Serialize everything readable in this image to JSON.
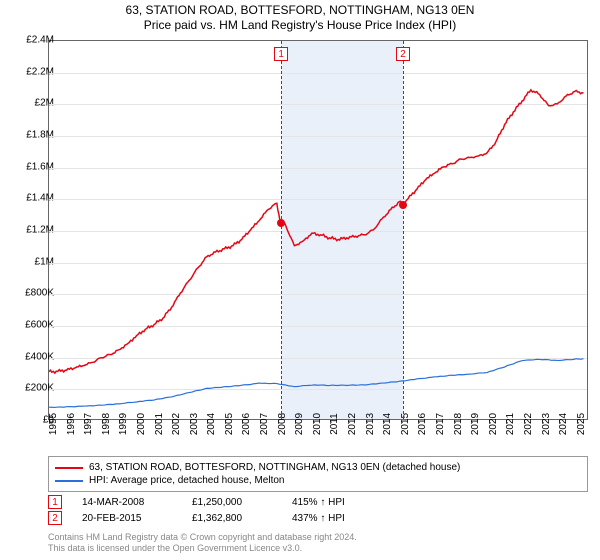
{
  "title_line1": "63, STATION ROAD, BOTTESFORD, NOTTINGHAM, NG13 0EN",
  "title_line2": "Price paid vs. HM Land Registry's House Price Index (HPI)",
  "chart": {
    "type": "line",
    "background_color": "#ffffff",
    "grid_color": "#e4e4e4",
    "shade_color": "#eaf0fa",
    "axis_color": "#666666",
    "x": {
      "min": 1995,
      "max": 2025.7,
      "ticks": [
        1995,
        1996,
        1997,
        1998,
        1999,
        2000,
        2001,
        2002,
        2003,
        2004,
        2005,
        2006,
        2007,
        2008,
        2009,
        2010,
        2011,
        2012,
        2013,
        2014,
        2015,
        2016,
        2017,
        2018,
        2019,
        2020,
        2021,
        2022,
        2023,
        2024,
        2025
      ]
    },
    "y": {
      "min": 0,
      "max": 2400000,
      "ticks": [
        0,
        200000,
        400000,
        600000,
        800000,
        1000000,
        1200000,
        1400000,
        1600000,
        1800000,
        2000000,
        2200000,
        2400000
      ],
      "tick_labels": [
        "£0",
        "£200K",
        "£400K",
        "£600K",
        "£800K",
        "£1M",
        "£1.2M",
        "£1.4M",
        "£1.6M",
        "£1.8M",
        "£2M",
        "£2.2M",
        "£2.4M"
      ]
    },
    "series": [
      {
        "id": "price_paid",
        "label": "63, STATION ROAD, BOTTESFORD, NOTTINGHAM, NG13 0EN (detached house)",
        "color": "#e30613",
        "width": 1.5,
        "data": [
          [
            1995.0,
            300000
          ],
          [
            1995.5,
            302000
          ],
          [
            1996.0,
            310000
          ],
          [
            1996.5,
            325000
          ],
          [
            1997.0,
            340000
          ],
          [
            1997.5,
            360000
          ],
          [
            1998.0,
            390000
          ],
          [
            1998.5,
            410000
          ],
          [
            1999.0,
            440000
          ],
          [
            1999.5,
            480000
          ],
          [
            2000.0,
            530000
          ],
          [
            2000.5,
            570000
          ],
          [
            2001.0,
            600000
          ],
          [
            2001.5,
            640000
          ],
          [
            2002.0,
            710000
          ],
          [
            2002.5,
            800000
          ],
          [
            2003.0,
            880000
          ],
          [
            2003.5,
            960000
          ],
          [
            2004.0,
            1030000
          ],
          [
            2004.5,
            1060000
          ],
          [
            2005.0,
            1080000
          ],
          [
            2005.5,
            1100000
          ],
          [
            2006.0,
            1140000
          ],
          [
            2006.5,
            1200000
          ],
          [
            2007.0,
            1260000
          ],
          [
            2007.5,
            1330000
          ],
          [
            2008.0,
            1370000
          ],
          [
            2008.2,
            1250000
          ],
          [
            2008.5,
            1230000
          ],
          [
            2009.0,
            1100000
          ],
          [
            2009.5,
            1130000
          ],
          [
            2010.0,
            1180000
          ],
          [
            2010.5,
            1170000
          ],
          [
            2011.0,
            1150000
          ],
          [
            2011.5,
            1140000
          ],
          [
            2012.0,
            1150000
          ],
          [
            2012.5,
            1160000
          ],
          [
            2013.0,
            1170000
          ],
          [
            2013.5,
            1200000
          ],
          [
            2014.0,
            1270000
          ],
          [
            2014.5,
            1330000
          ],
          [
            2015.0,
            1380000
          ],
          [
            2015.13,
            1362800
          ],
          [
            2015.5,
            1400000
          ],
          [
            2016.0,
            1460000
          ],
          [
            2016.5,
            1520000
          ],
          [
            2017.0,
            1560000
          ],
          [
            2017.5,
            1600000
          ],
          [
            2018.0,
            1620000
          ],
          [
            2018.5,
            1650000
          ],
          [
            2019.0,
            1660000
          ],
          [
            2019.5,
            1670000
          ],
          [
            2020.0,
            1690000
          ],
          [
            2020.5,
            1760000
          ],
          [
            2021.0,
            1870000
          ],
          [
            2021.5,
            1950000
          ],
          [
            2022.0,
            2020000
          ],
          [
            2022.5,
            2090000
          ],
          [
            2023.0,
            2060000
          ],
          [
            2023.5,
            1990000
          ],
          [
            2024.0,
            2000000
          ],
          [
            2024.5,
            2050000
          ],
          [
            2025.0,
            2080000
          ],
          [
            2025.5,
            2070000
          ]
        ]
      },
      {
        "id": "hpi",
        "label": "HPI: Average price, detached house, Melton",
        "color": "#2a6fdb",
        "width": 1.2,
        "data": [
          [
            1995.0,
            75000
          ],
          [
            1996.0,
            78000
          ],
          [
            1997.0,
            82000
          ],
          [
            1998.0,
            88000
          ],
          [
            1999.0,
            96000
          ],
          [
            2000.0,
            108000
          ],
          [
            2001.0,
            120000
          ],
          [
            2002.0,
            140000
          ],
          [
            2003.0,
            168000
          ],
          [
            2004.0,
            195000
          ],
          [
            2005.0,
            205000
          ],
          [
            2006.0,
            215000
          ],
          [
            2007.0,
            228000
          ],
          [
            2008.0,
            225000
          ],
          [
            2009.0,
            205000
          ],
          [
            2010.0,
            215000
          ],
          [
            2011.0,
            212000
          ],
          [
            2012.0,
            213000
          ],
          [
            2013.0,
            216000
          ],
          [
            2014.0,
            228000
          ],
          [
            2015.0,
            240000
          ],
          [
            2016.0,
            255000
          ],
          [
            2017.0,
            268000
          ],
          [
            2018.0,
            278000
          ],
          [
            2019.0,
            285000
          ],
          [
            2020.0,
            295000
          ],
          [
            2021.0,
            330000
          ],
          [
            2022.0,
            370000
          ],
          [
            2023.0,
            378000
          ],
          [
            2024.0,
            372000
          ],
          [
            2025.0,
            380000
          ],
          [
            2025.5,
            382000
          ]
        ]
      }
    ],
    "shaded_range": {
      "from": 2008.2,
      "to": 2015.13
    },
    "markers": [
      {
        "n": "1",
        "x": 2008.2,
        "y": 1250000,
        "color": "#e30613"
      },
      {
        "n": "2",
        "x": 2015.13,
        "y": 1362800,
        "color": "#e30613"
      }
    ]
  },
  "legend": [
    {
      "color": "#e30613",
      "label": "63, STATION ROAD, BOTTESFORD, NOTTINGHAM, NG13 0EN (detached house)"
    },
    {
      "color": "#2a6fdb",
      "label": "HPI: Average price, detached house, Melton"
    }
  ],
  "sales": [
    {
      "n": "1",
      "color": "#e30613",
      "date": "14-MAR-2008",
      "price": "£1,250,000",
      "pct": "415% ↑ HPI"
    },
    {
      "n": "2",
      "color": "#e30613",
      "date": "20-FEB-2015",
      "price": "£1,362,800",
      "pct": "437% ↑ HPI"
    }
  ],
  "attribution": {
    "line1": "Contains HM Land Registry data © Crown copyright and database right 2024.",
    "line2": "This data is licensed under the Open Government Licence v3.0."
  }
}
